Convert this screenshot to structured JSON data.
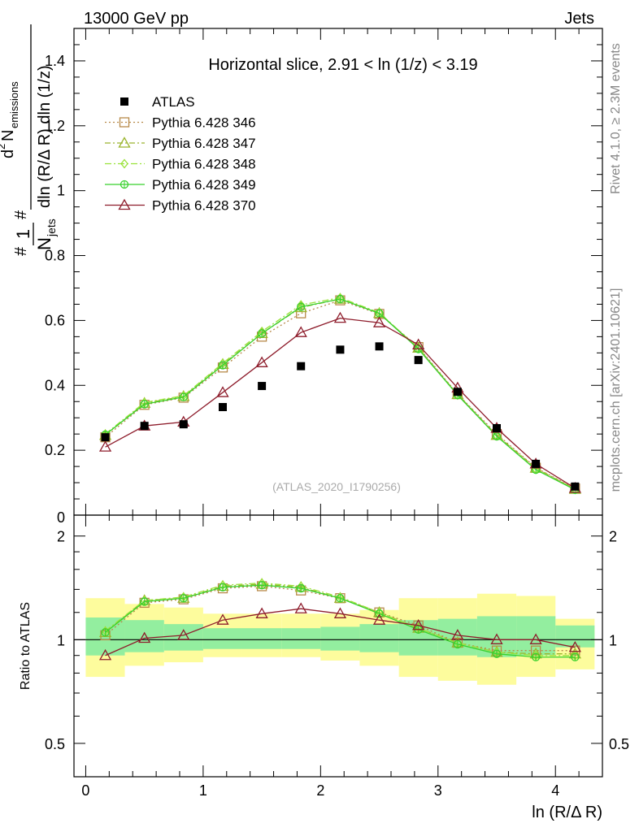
{
  "header": {
    "energy_label": "13000 GeV pp",
    "process_label": "Jets"
  },
  "side_text": {
    "rivet": "Rivet 4.1.0, ≥ 2.3M events",
    "mcplots": "mcplots.cern.ch [arXiv:2401.10621]"
  },
  "chart_data": [
    {
      "type": "scatter",
      "panel": "main",
      "title": "Horizontal slice, 2.91 < ln (1/z) < 3.19",
      "watermark": "(ATLAS_2020_I1790256)",
      "ylabel_parts": {
        "hash1": "#",
        "one": "1",
        "n": "N",
        "jets": "jets",
        "hash2": "#",
        "num_d": "d",
        "num_2": "2",
        "num_n": "N",
        "num_sub": "emissions",
        "den": "dln (R/Δ R) dln (1/z)"
      },
      "xlabel": "ln (R/Δ R)",
      "xlim": [
        -0.1,
        4.4
      ],
      "ylim": [
        0.0,
        1.5
      ],
      "y_ticks": [
        "0.2",
        "0.4",
        "0.6",
        "0.8",
        "1",
        "1.2",
        "1.4"
      ],
      "y_tick_values": [
        0.2,
        0.4,
        0.6,
        0.8,
        1.0,
        1.2,
        1.4
      ],
      "bottom_tick_label": "0",
      "x": [
        0.167,
        0.5,
        0.833,
        1.167,
        1.5,
        1.833,
        2.167,
        2.5,
        2.833,
        3.167,
        3.5,
        3.833,
        4.167
      ],
      "data": {
        "name": "ATLAS",
        "values": [
          0.24,
          0.275,
          0.28,
          0.333,
          0.398,
          0.459,
          0.51,
          0.52,
          0.478,
          0.38,
          0.268,
          0.158,
          0.088
        ]
      },
      "series": [
        {
          "name": "Pythia 6.428 346",
          "color": "#b88a4a",
          "marker": "square",
          "dash": "2,3",
          "values": [
            0.24,
            0.34,
            0.362,
            0.455,
            0.55,
            0.622,
            0.662,
            0.62,
            0.518,
            0.373,
            0.25,
            0.146,
            0.082
          ]
        },
        {
          "name": "Pythia 6.428 347",
          "color": "#9bb52e",
          "marker": "triangle",
          "dash": "7,3,2,3",
          "values": [
            0.246,
            0.345,
            0.366,
            0.465,
            0.56,
            0.64,
            0.666,
            0.622,
            0.515,
            0.372,
            0.246,
            0.145,
            0.08
          ]
        },
        {
          "name": "Pythia 6.428 348",
          "color": "#9ae23a",
          "marker": "diamond",
          "dash": "8,3,2,3",
          "values": [
            0.25,
            0.347,
            0.368,
            0.468,
            0.566,
            0.648,
            0.67,
            0.624,
            0.514,
            0.37,
            0.244,
            0.141,
            0.079
          ]
        },
        {
          "name": "Pythia 6.428 349",
          "color": "#38d12c",
          "marker": "circle",
          "dash": "",
          "values": [
            0.248,
            0.342,
            0.364,
            0.462,
            0.56,
            0.642,
            0.666,
            0.622,
            0.512,
            0.37,
            0.243,
            0.14,
            0.078
          ]
        },
        {
          "name": "Pythia 6.428 370",
          "color": "#8e1d2c",
          "marker": "triangle",
          "dash": "",
          "values": [
            0.21,
            0.275,
            0.287,
            0.378,
            0.47,
            0.563,
            0.607,
            0.593,
            0.525,
            0.392,
            0.268,
            0.158,
            0.083
          ]
        }
      ]
    },
    {
      "type": "line",
      "panel": "ratio",
      "ylabel": "Ratio to ATLAS",
      "ylim": [
        0.4,
        2.3
      ],
      "log_y": true,
      "y_ticks": [
        "0.5",
        "1",
        "2"
      ],
      "y_tick_values": [
        0.5,
        1.0,
        2.0
      ],
      "x_ticks": [
        "0",
        "1",
        "2",
        "3",
        "4"
      ],
      "x_tick_values": [
        0,
        1,
        2,
        3,
        4
      ],
      "bin_edges": [
        0.0,
        0.333,
        0.667,
        1.0,
        1.333,
        1.667,
        2.0,
        2.333,
        2.667,
        3.0,
        3.333,
        3.667,
        4.0,
        4.333
      ],
      "band_outer": [
        [
          0.78,
          1.32
        ],
        [
          0.84,
          1.27
        ],
        [
          0.86,
          1.24
        ],
        [
          0.89,
          1.19
        ],
        [
          0.89,
          1.19
        ],
        [
          0.89,
          1.19
        ],
        [
          0.87,
          1.19
        ],
        [
          0.84,
          1.22
        ],
        [
          0.78,
          1.32
        ],
        [
          0.76,
          1.32
        ],
        [
          0.74,
          1.36
        ],
        [
          0.78,
          1.34
        ],
        [
          0.82,
          1.15
        ]
      ],
      "band_inner": [
        [
          0.9,
          1.16
        ],
        [
          0.92,
          1.14
        ],
        [
          0.93,
          1.11
        ],
        [
          0.94,
          1.08
        ],
        [
          0.94,
          1.08
        ],
        [
          0.94,
          1.08
        ],
        [
          0.93,
          1.09
        ],
        [
          0.92,
          1.11
        ],
        [
          0.9,
          1.14
        ],
        [
          0.9,
          1.15
        ],
        [
          0.89,
          1.17
        ],
        [
          0.9,
          1.17
        ],
        [
          0.95,
          1.1
        ]
      ],
      "series": [
        {
          "name": "Pythia 6.428 346",
          "values": [
            1.03,
            1.28,
            1.31,
            1.41,
            1.43,
            1.39,
            1.32,
            1.2,
            1.1,
            0.98,
            0.93,
            0.93,
            0.93
          ]
        },
        {
          "name": "Pythia 6.428 347",
          "values": [
            1.05,
            1.3,
            1.32,
            1.43,
            1.45,
            1.42,
            1.32,
            1.2,
            1.08,
            0.98,
            0.92,
            0.91,
            0.91
          ]
        },
        {
          "name": "Pythia 6.428 348",
          "values": [
            1.06,
            1.3,
            1.33,
            1.44,
            1.46,
            1.43,
            1.33,
            1.2,
            1.08,
            0.98,
            0.92,
            0.9,
            0.9
          ]
        },
        {
          "name": "Pythia 6.428 349",
          "values": [
            1.05,
            1.29,
            1.32,
            1.42,
            1.44,
            1.41,
            1.32,
            1.19,
            1.07,
            0.97,
            0.91,
            0.89,
            0.89
          ]
        },
        {
          "name": "Pythia 6.428 370",
          "values": [
            0.9,
            1.01,
            1.03,
            1.14,
            1.19,
            1.23,
            1.19,
            1.14,
            1.1,
            1.03,
            1.0,
            1.0,
            0.95
          ]
        }
      ]
    }
  ]
}
